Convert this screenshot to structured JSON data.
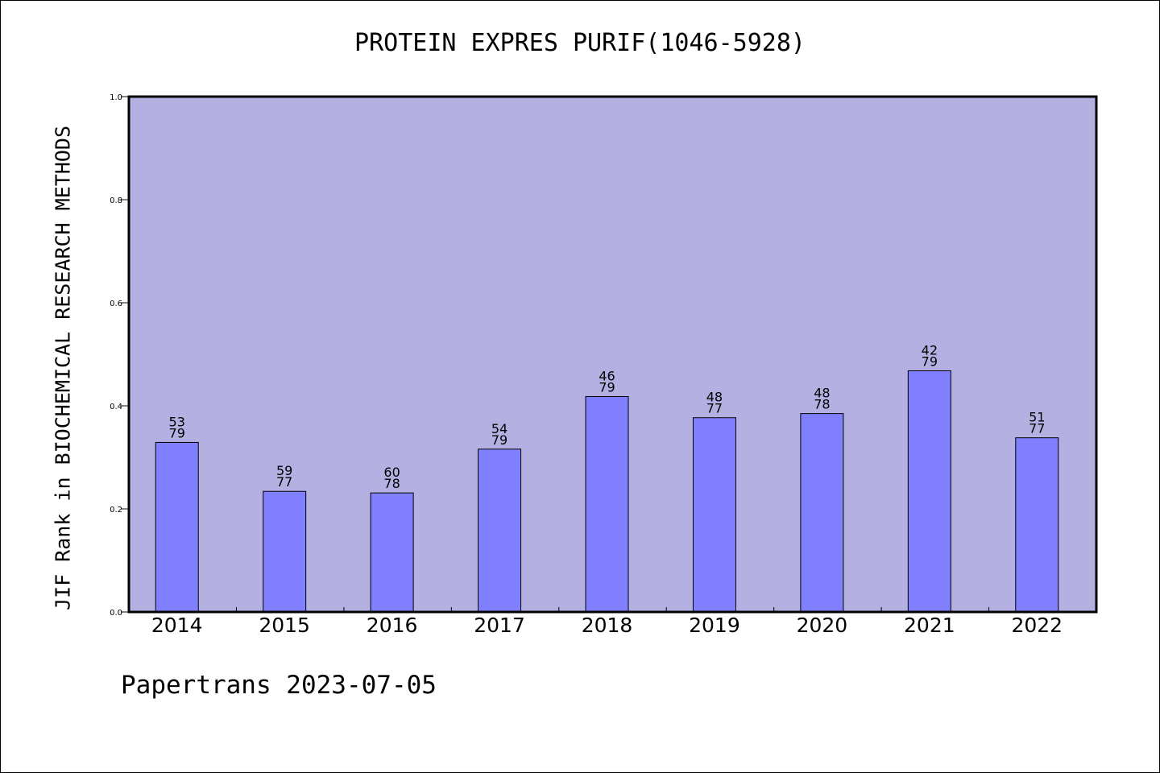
{
  "title": "PROTEIN EXPRES PURIF(1046-5928)",
  "footer": "Papertrans 2023-07-05",
  "colors": {
    "plot_background": "#b5b0e2",
    "bar_fill": "#8080ff",
    "bar_stroke": "#000000"
  },
  "chart_data": {
    "type": "bar",
    "title": "PROTEIN EXPRES PURIF(1046-5928)",
    "xlabel": "",
    "ylabel": "JIF Rank in BIOCHEMICAL RESEARCH METHODS",
    "ylim": [
      0,
      1.0
    ],
    "yticks": [
      "0.0",
      "0.2",
      "0.4",
      "0.6",
      "0.8",
      "1.0"
    ],
    "grid": false,
    "categories": [
      "2014",
      "2015",
      "2016",
      "2017",
      "2018",
      "2019",
      "2020",
      "2021",
      "2022"
    ],
    "ranks": [
      53,
      59,
      60,
      54,
      46,
      48,
      48,
      42,
      51
    ],
    "totals": [
      79,
      77,
      78,
      79,
      79,
      77,
      78,
      79,
      77
    ],
    "values": [
      0.329,
      0.234,
      0.231,
      0.316,
      0.418,
      0.377,
      0.385,
      0.468,
      0.338
    ]
  }
}
